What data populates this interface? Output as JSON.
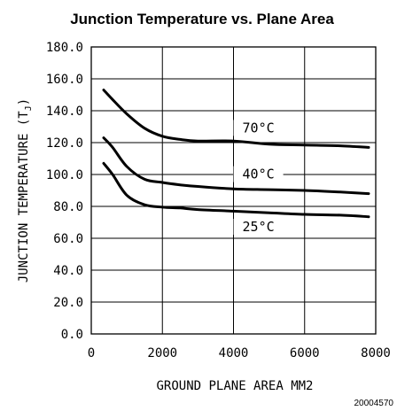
{
  "chart_data": {
    "type": "line",
    "title": "Junction Temperature vs. Plane Area",
    "xlabel": "GROUND PLANE AREA MM2",
    "ylabel": "JUNCTION TEMPERATURE (T",
    "ylabel_subscript": "J",
    "ylabel_close": ")",
    "xlim": [
      0,
      8000
    ],
    "ylim": [
      0,
      180
    ],
    "x_ticks": [
      "0",
      "2000",
      "4000",
      "6000",
      "8000"
    ],
    "y_ticks": [
      "0.0",
      "20.0",
      "40.0",
      "60.0",
      "80.0",
      "100.0",
      "120.0",
      "140.0",
      "160.0",
      "180.0"
    ],
    "x_tick_values": [
      0,
      2000,
      4000,
      6000,
      8000
    ],
    "y_tick_values": [
      0,
      20,
      40,
      60,
      80,
      100,
      120,
      140,
      160,
      180
    ],
    "grid": true,
    "figure_id": "20004570",
    "series": [
      {
        "name": "70°C",
        "x": [
          350,
          600,
          1000,
          1500,
          2000,
          2500,
          3000,
          4000,
          5000,
          6000,
          7000,
          7800
        ],
        "y": [
          153,
          147,
          138,
          129,
          124,
          122,
          121,
          121,
          119,
          118.5,
          118,
          117
        ]
      },
      {
        "name": "40°C",
        "x": [
          350,
          600,
          1000,
          1500,
          2000,
          2500,
          3000,
          4000,
          5000,
          6000,
          7000,
          7800
        ],
        "y": [
          123,
          117,
          105,
          97,
          95,
          93.5,
          92.5,
          91,
          90.5,
          90,
          89,
          88
        ]
      },
      {
        "name": "25°C",
        "x": [
          350,
          600,
          1000,
          1500,
          2000,
          2500,
          3000,
          4000,
          5000,
          6000,
          7000,
          7800
        ],
        "y": [
          107,
          100,
          87,
          81,
          79.5,
          79,
          78,
          77,
          76,
          75,
          74.5,
          73.5
        ]
      }
    ]
  }
}
